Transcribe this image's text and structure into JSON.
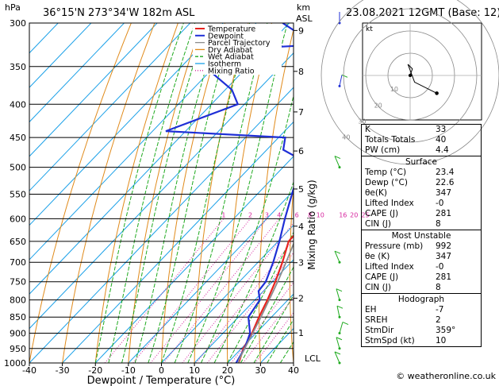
{
  "header": {
    "hpa_unit": "hPa",
    "location": "36°15'N  273°34'W  182m  ASL",
    "km_unit": "km",
    "asl": "ASL",
    "datetime": "23.08.2021  12GMT  (Base: 12)"
  },
  "legend": [
    {
      "label": "Temperature",
      "color": "#e8231f"
    },
    {
      "label": "Dewpoint",
      "color": "#1f2fd6"
    },
    {
      "label": "Parcel Trajectory",
      "color": "#8c8c8c"
    },
    {
      "label": "Dry Adiabat",
      "color": "#e08a1a"
    },
    {
      "label": "Wet Adiabat",
      "color": "#1faa1f"
    },
    {
      "label": "Isotherm",
      "color": "#1aa0e8"
    },
    {
      "label": "Mixing Ratio",
      "color": "#d6249e"
    }
  ],
  "footer": {
    "copyright": "© weatheronline.co.uk"
  },
  "hodograph": {
    "unit": "kt",
    "ring_labels": [
      "10",
      "20",
      "30",
      "40"
    ],
    "points": [
      [
        0,
        0
      ],
      [
        1,
        3
      ],
      [
        -1,
        5
      ],
      [
        2,
        -3
      ],
      [
        12,
        -8
      ]
    ]
  },
  "indices": {
    "rows": [
      {
        "label": "K",
        "value": "33"
      },
      {
        "label": "Totals Totals",
        "value": "40"
      },
      {
        "label": "PW (cm)",
        "value": "4.4"
      }
    ]
  },
  "surface": {
    "title": "Surface",
    "rows": [
      {
        "label": "Temp (°C)",
        "value": "23.4"
      },
      {
        "label": "Dewp (°C)",
        "value": "22.6"
      },
      {
        "label": "θe(K)",
        "value": "347"
      },
      {
        "label": "Lifted Index",
        "value": "-0"
      },
      {
        "label": "CAPE (J)",
        "value": "281"
      },
      {
        "label": "CIN (J)",
        "value": "8"
      }
    ]
  },
  "most_unstable": {
    "title": "Most Unstable",
    "rows": [
      {
        "label": "Pressure (mb)",
        "value": "992"
      },
      {
        "label": "θe (K)",
        "value": "347"
      },
      {
        "label": "Lifted Index",
        "value": "-0"
      },
      {
        "label": "CAPE (J)",
        "value": "281"
      },
      {
        "label": "CIN (J)",
        "value": "8"
      }
    ]
  },
  "hodo_table": {
    "title": "Hodograph",
    "rows": [
      {
        "label": "EH",
        "value": "-7"
      },
      {
        "label": "SREH",
        "value": "2"
      },
      {
        "label": "StmDir",
        "value": "359°"
      },
      {
        "label": "StmSpd (kt)",
        "value": "10"
      }
    ]
  },
  "chart_data": {
    "type": "line",
    "title": "36°15'N  273°34'W  182m  ASL",
    "xlabel": "Dewpoint / Temperature (°C)",
    "ylabel_left": "hPa",
    "ylabel_right": "Mixing Ratio (g/kg)",
    "xlim": [
      -40,
      40
    ],
    "ylim": [
      1000,
      300
    ],
    "x_ticks": [
      "-40",
      "-30",
      "-20",
      "-10",
      "0",
      "10",
      "20",
      "30",
      "40"
    ],
    "pressure_levels": [
      300,
      350,
      400,
      450,
      500,
      550,
      600,
      650,
      700,
      750,
      800,
      850,
      900,
      950,
      1000
    ],
    "km_ticks": [
      {
        "km": "1",
        "p": 899
      },
      {
        "km": "2",
        "p": 795
      },
      {
        "km": "3",
        "p": 701
      },
      {
        "km": "4",
        "p": 616
      },
      {
        "km": "5",
        "p": 540
      },
      {
        "km": "6",
        "p": 472
      },
      {
        "km": "7",
        "p": 411
      },
      {
        "km": "8",
        "p": 356
      },
      {
        "km": "9",
        "p": 308
      }
    ],
    "lcl_label": "LCL",
    "lcl_p": 990,
    "mixing_ratio_labels": [
      "1",
      "2",
      "3",
      "4",
      "6",
      "8",
      "10",
      "16",
      "20",
      "25"
    ],
    "mixing_ratio_values": [
      1,
      2,
      3,
      4,
      6,
      8,
      10,
      16,
      20,
      25
    ],
    "series": [
      {
        "name": "Temperature",
        "color": "#e8231f",
        "points": [
          [
            1000,
            23.4
          ],
          [
            950,
            20.6
          ],
          [
            900,
            18.8
          ],
          [
            850,
            16.2
          ],
          [
            800,
            13.8
          ],
          [
            750,
            10.9
          ],
          [
            700,
            7.4
          ],
          [
            650,
            3.2
          ],
          [
            630,
            3.0
          ],
          [
            600,
            1.0
          ],
          [
            550,
            -3.2
          ],
          [
            500,
            -8.2
          ],
          [
            450,
            -13.0
          ],
          [
            440,
            -12.0
          ],
          [
            430,
            -13.5
          ],
          [
            400,
            -19.0
          ],
          [
            350,
            -26.5
          ]
        ]
      },
      {
        "name": "Dewpoint",
        "color": "#1f2fd6",
        "points": [
          [
            1000,
            22.6
          ],
          [
            950,
            21.0
          ],
          [
            900,
            18.2
          ],
          [
            850,
            13.0
          ],
          [
            800,
            11.5
          ],
          [
            775,
            8.5
          ],
          [
            750,
            8.0
          ],
          [
            700,
            4.6
          ],
          [
            650,
            0.4
          ],
          [
            600,
            -4.5
          ],
          [
            550,
            -9.5
          ],
          [
            500,
            -15.0
          ],
          [
            480,
            -20.0
          ],
          [
            470,
            -25.0
          ],
          [
            450,
            -28.0
          ],
          [
            440,
            -66.0
          ],
          [
            400,
            -52.0
          ],
          [
            380,
            -58.0
          ],
          [
            350,
            -73.0
          ],
          [
            330,
            -74.0
          ],
          [
            325,
            -50.0
          ],
          [
            320,
            -52.0
          ],
          [
            310,
            -55.0
          ],
          [
            300,
            -62.0
          ]
        ]
      },
      {
        "name": "Parcel Trajectory",
        "color": "#8c8c8c",
        "points": [
          [
            1000,
            23.4
          ],
          [
            990,
            22.6
          ],
          [
            950,
            21.0
          ],
          [
            900,
            19.0
          ],
          [
            850,
            16.8
          ],
          [
            800,
            14.3
          ],
          [
            750,
            11.6
          ],
          [
            700,
            8.5
          ],
          [
            650,
            5.0
          ],
          [
            600,
            1.2
          ],
          [
            550,
            -3.2
          ],
          [
            500,
            -8.2
          ],
          [
            450,
            -14.0
          ],
          [
            400,
            -20.5
          ],
          [
            350,
            -28.5
          ],
          [
            300,
            -37.5
          ]
        ]
      }
    ]
  }
}
